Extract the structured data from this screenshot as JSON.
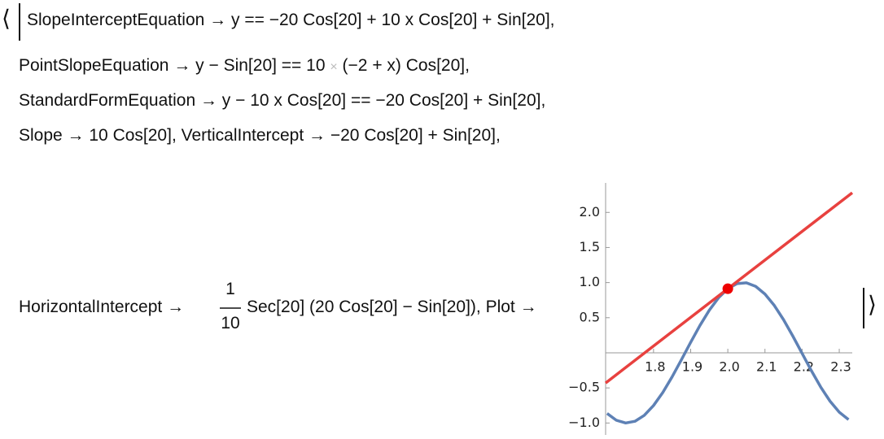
{
  "expression": {
    "open_bracket": "⟨",
    "close_bracket": "⟩",
    "line1": "SlopeInterceptEquation → y == −20 Cos[20] + 10 x Cos[20] + Sin[20],",
    "line2": {
      "before": "PointSlopeEquation → y − Sin[20] == 10",
      "times": "×",
      "after": "(−2 + x) Cos[20],"
    },
    "line3": "StandardFormEquation → y − 10 x Cos[20] == −20 Cos[20] + Sin[20],",
    "line4": "Slope → 10 Cos[20], VerticalIntercept → −20 Cos[20] + Sin[20],",
    "line5": {
      "before": "HorizontalIntercept →",
      "numerator": "1",
      "denominator": "10",
      "after": "Sec[20] (20 Cos[20] − Sin[20]), Plot →"
    }
  },
  "chart_data": {
    "type": "line",
    "xlim": [
      1.671,
      2.335
    ],
    "ylim": [
      -1.17,
      2.42
    ],
    "xticks": [
      1.8,
      1.9,
      {
        "value": 2.0,
        "label": "2.0"
      },
      2.1,
      2.2,
      2.3
    ],
    "yticks": [
      {
        "value": -1.0,
        "label": "−1.0"
      },
      {
        "value": -0.5,
        "label": "−0.5"
      },
      0.5,
      {
        "value": 1.0,
        "label": "1.0"
      },
      1.5,
      {
        "value": 2.0,
        "label": "2.0"
      }
    ],
    "series": [
      {
        "color": "#5e81b5",
        "x": [
          1.675,
          1.7,
          1.725,
          1.75,
          1.775,
          1.8,
          1.825,
          1.85,
          1.875,
          1.9,
          1.925,
          1.95,
          1.975,
          2.0,
          2.025,
          2.05,
          2.075,
          2.1,
          2.125,
          2.15,
          2.175,
          2.2,
          2.225,
          2.25,
          2.275,
          2.3,
          2.325
        ],
        "values": [
          -0.864,
          -0.9614,
          -0.9996,
          -0.9756,
          -0.8912,
          -0.751,
          -0.5646,
          -0.3425,
          -0.0995,
          0.1499,
          0.3898,
          0.6055,
          0.7836,
          0.9129,
          0.9855,
          0.9968,
          0.9461,
          0.8367,
          0.6755,
          0.4716,
          0.2386,
          -0.0089,
          -0.2557,
          -0.4872,
          -0.6878,
          -0.8462,
          -0.9515
        ]
      },
      {
        "color": "#e8413f",
        "x": [
          1.671,
          2.335
        ],
        "values": [
          -0.4297,
          2.28
        ]
      },
      {
        "color": "#ee0000",
        "marker": true,
        "x": [
          2.0
        ],
        "values": [
          0.9129
        ]
      }
    ]
  }
}
